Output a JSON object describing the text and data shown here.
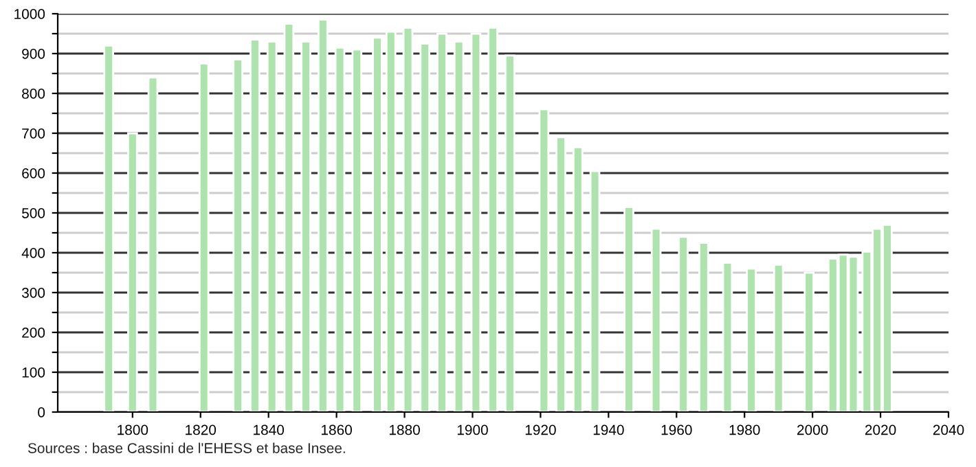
{
  "chart_data": {
    "type": "bar",
    "x": [
      1793,
      1800,
      1806,
      1821,
      1831,
      1836,
      1841,
      1846,
      1851,
      1856,
      1861,
      1866,
      1872,
      1876,
      1881,
      1886,
      1891,
      1896,
      1901,
      1906,
      1911,
      1921,
      1926,
      1931,
      1936,
      1946,
      1954,
      1962,
      1968,
      1975,
      1982,
      1990,
      1999,
      2006,
      2009,
      2012,
      2016,
      2019,
      2022
    ],
    "values": [
      920,
      700,
      840,
      875,
      885,
      935,
      930,
      975,
      930,
      985,
      915,
      910,
      940,
      955,
      965,
      925,
      950,
      930,
      950,
      965,
      895,
      760,
      690,
      665,
      605,
      515,
      460,
      440,
      425,
      375,
      360,
      370,
      350,
      385,
      395,
      390,
      403,
      460,
      470
    ],
    "color": "#aee3ae",
    "xlim": [
      1778,
      2040
    ],
    "xticks": [
      1800,
      1820,
      1840,
      1860,
      1880,
      1900,
      1920,
      1940,
      1960,
      1980,
      2000,
      2020,
      2040
    ],
    "ylim": [
      0,
      1000
    ],
    "yticks": [
      0,
      {
        "value": 50,
        "label": null
      },
      100,
      {
        "value": 150,
        "label": null
      },
      200,
      {
        "value": 250,
        "label": null
      },
      300,
      {
        "value": 350,
        "label": null
      },
      400,
      {
        "value": 450,
        "label": null
      },
      500,
      {
        "value": 550,
        "label": null
      },
      600,
      {
        "value": 650,
        "label": null
      },
      700,
      {
        "value": 750,
        "label": null
      },
      800,
      {
        "value": 850,
        "label": null
      },
      900,
      {
        "value": 950,
        "label": null
      },
      1000
    ],
    "grid": "y",
    "annotations": [
      "Sources : base Cassini de l'EHESS et base Insee."
    ]
  }
}
